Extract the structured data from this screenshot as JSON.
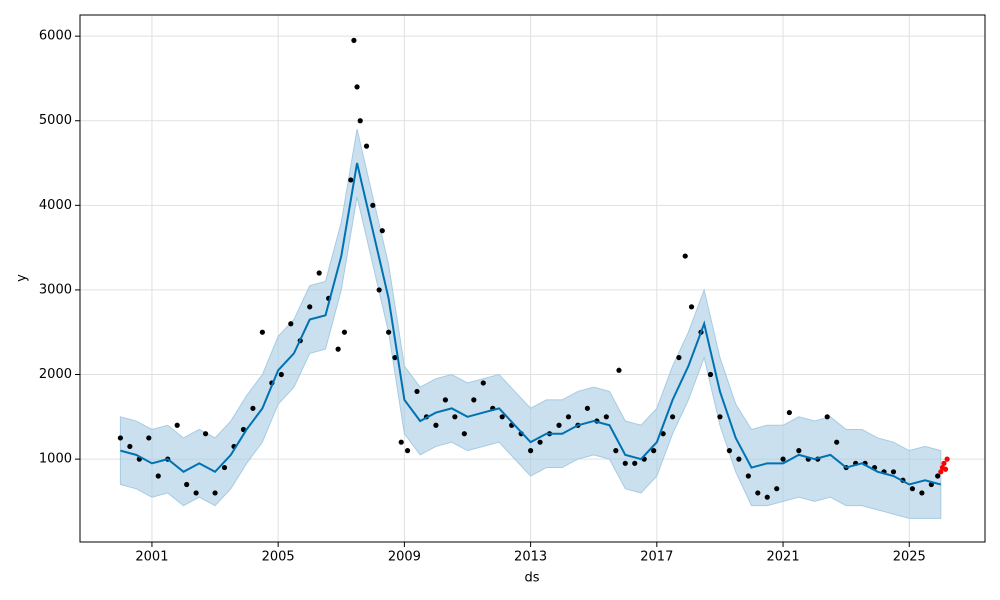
{
  "chart_data": {
    "type": "line",
    "xlabel": "ds",
    "ylabel": "y",
    "xlim": [
      1998.72,
      2027.4
    ],
    "ylim": [
      20,
      6250
    ],
    "xticks": [
      2001,
      2005,
      2009,
      2013,
      2017,
      2021,
      2025
    ],
    "yticks": [
      1000,
      2000,
      3000,
      4000,
      5000,
      6000
    ],
    "grid": true,
    "forecast": {
      "color": "#0072b2",
      "band_color": "#a6cbe3",
      "x": [
        2000.0,
        2000.5,
        2001.0,
        2001.5,
        2002.0,
        2002.5,
        2003.0,
        2003.5,
        2004.0,
        2004.5,
        2005.0,
        2005.5,
        2006.0,
        2006.5,
        2007.0,
        2007.5,
        2008.0,
        2008.5,
        2009.0,
        2009.5,
        2010.0,
        2010.5,
        2011.0,
        2011.5,
        2012.0,
        2012.5,
        2013.0,
        2013.5,
        2014.0,
        2014.5,
        2015.0,
        2015.5,
        2016.0,
        2016.5,
        2017.0,
        2017.5,
        2018.0,
        2018.5,
        2019.0,
        2019.5,
        2020.0,
        2020.5,
        2021.0,
        2021.5,
        2022.0,
        2022.5,
        2023.0,
        2023.5,
        2024.0,
        2024.5,
        2025.0,
        2025.5,
        2026.0
      ],
      "values": [
        1100,
        1050,
        950,
        1000,
        850,
        950,
        850,
        1050,
        1350,
        1600,
        2050,
        2250,
        2650,
        2700,
        3400,
        4500,
        3700,
        2900,
        1700,
        1450,
        1550,
        1600,
        1500,
        1550,
        1600,
        1400,
        1200,
        1300,
        1300,
        1400,
        1450,
        1400,
        1050,
        1000,
        1200,
        1700,
        2100,
        2600,
        1800,
        1250,
        900,
        950,
        950,
        1050,
        1000,
        1050,
        900,
        950,
        850,
        800,
        700,
        750,
        700
      ],
      "lower": [
        700,
        650,
        550,
        600,
        450,
        550,
        450,
        650,
        950,
        1200,
        1650,
        1850,
        2250,
        2300,
        3000,
        4100,
        3300,
        2500,
        1300,
        1050,
        1150,
        1200,
        1100,
        1150,
        1200,
        1000,
        800,
        900,
        900,
        1000,
        1050,
        1000,
        650,
        600,
        800,
        1300,
        1700,
        2200,
        1400,
        850,
        450,
        450,
        500,
        550,
        500,
        550,
        450,
        450,
        400,
        350,
        300,
        300,
        300
      ],
      "upper": [
        1500,
        1450,
        1350,
        1400,
        1250,
        1350,
        1250,
        1450,
        1750,
        2000,
        2450,
        2650,
        3050,
        3100,
        3800,
        4900,
        4100,
        3300,
        2100,
        1850,
        1950,
        2000,
        1900,
        1950,
        2000,
        1800,
        1600,
        1700,
        1700,
        1800,
        1850,
        1800,
        1450,
        1400,
        1600,
        2100,
        2500,
        3000,
        2200,
        1650,
        1350,
        1400,
        1400,
        1500,
        1450,
        1500,
        1350,
        1350,
        1250,
        1200,
        1100,
        1150,
        1100
      ]
    },
    "observed": {
      "color": "#000000",
      "x": [
        2000.0,
        2000.3,
        2000.6,
        2000.9,
        2001.2,
        2001.5,
        2001.8,
        2002.1,
        2002.4,
        2002.7,
        2003.0,
        2003.3,
        2003.6,
        2003.9,
        2004.2,
        2004.5,
        2004.8,
        2005.1,
        2005.4,
        2005.7,
        2006.0,
        2006.3,
        2006.6,
        2006.9,
        2007.1,
        2007.3,
        2007.4,
        2007.5,
        2007.6,
        2007.8,
        2008.0,
        2008.2,
        2008.3,
        2008.5,
        2008.7,
        2008.9,
        2009.1,
        2009.4,
        2009.7,
        2010.0,
        2010.3,
        2010.6,
        2010.9,
        2011.2,
        2011.5,
        2011.8,
        2012.1,
        2012.4,
        2012.7,
        2013.0,
        2013.3,
        2013.6,
        2013.9,
        2014.2,
        2014.5,
        2014.8,
        2015.1,
        2015.4,
        2015.7,
        2015.8,
        2016.0,
        2016.3,
        2016.6,
        2016.9,
        2017.2,
        2017.5,
        2017.7,
        2017.9,
        2018.1,
        2018.4,
        2018.7,
        2019.0,
        2019.3,
        2019.6,
        2019.9,
        2020.2,
        2020.5,
        2020.8,
        2021.0,
        2021.2,
        2021.5,
        2021.8,
        2022.1,
        2022.4,
        2022.7,
        2023.0,
        2023.3,
        2023.6,
        2023.9,
        2024.2,
        2024.5,
        2024.8,
        2025.1,
        2025.4,
        2025.7,
        2025.9
      ],
      "values": [
        1250,
        1150,
        1000,
        1250,
        800,
        1000,
        1400,
        700,
        600,
        1300,
        600,
        900,
        1150,
        1350,
        1600,
        2500,
        1900,
        2000,
        2600,
        2400,
        2800,
        3200,
        2900,
        2300,
        2500,
        4300,
        5950,
        5400,
        5000,
        4700,
        4000,
        3000,
        3700,
        2500,
        2200,
        1200,
        1100,
        1800,
        1500,
        1400,
        1700,
        1500,
        1300,
        1700,
        1900,
        1600,
        1500,
        1400,
        1300,
        1100,
        1200,
        1300,
        1400,
        1500,
        1400,
        1600,
        1450,
        1500,
        1100,
        2050,
        950,
        950,
        1000,
        1100,
        1300,
        1500,
        2200,
        3400,
        2800,
        2500,
        2000,
        1500,
        1100,
        1000,
        800,
        600,
        550,
        650,
        1000,
        1550,
        1100,
        1000,
        1000,
        1500,
        1200,
        900,
        950,
        950,
        900,
        850,
        850,
        750,
        650,
        600,
        700,
        800
      ]
    },
    "recent": {
      "color": "#ff0000",
      "x": [
        2026.0,
        2026.05,
        2026.1,
        2026.15,
        2026.2
      ],
      "values": [
        850,
        900,
        950,
        880,
        1000
      ]
    }
  }
}
